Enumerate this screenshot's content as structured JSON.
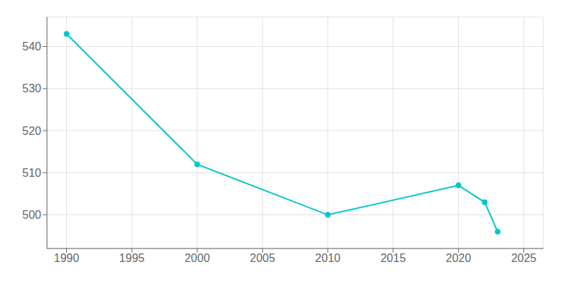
{
  "chart_data": {
    "type": "line",
    "x": [
      1990,
      2000,
      2010,
      2020,
      2022,
      2023
    ],
    "values": [
      543,
      512,
      500,
      507,
      503,
      496
    ],
    "color": "#00c8c8",
    "marker": "circle",
    "xlim": [
      1988.5,
      2026.5
    ],
    "ylim": [
      492,
      547
    ],
    "xticks": [
      1990,
      1995,
      2000,
      2005,
      2010,
      2015,
      2020,
      2025
    ],
    "yticks": [
      500,
      510,
      520,
      530,
      540
    ],
    "grid": true
  }
}
